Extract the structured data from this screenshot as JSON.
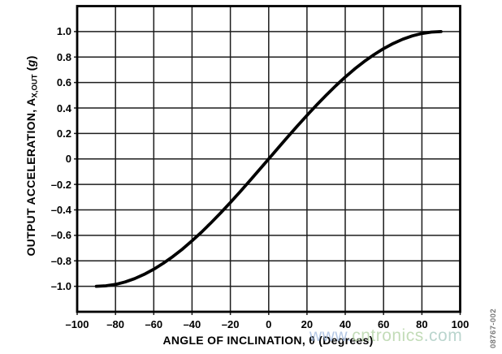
{
  "figure_code": "08767-002",
  "watermark": {
    "part1": "www.",
    "part2": "cntronics",
    "part3": ".com",
    "color1": "#a3bbdf",
    "color2": "#b5d4a7",
    "color3": "#a9cbc2"
  },
  "chart_data": {
    "type": "line",
    "title": "",
    "xlabel": "ANGLE OF INCLINATION, θ (Degrees)",
    "ylabel_parts": {
      "text": "OUTPUT ACCELERATION, A",
      "subscript": "X,OUT",
      "unit_open": " (",
      "unit": "g",
      "unit_close": ")"
    },
    "xlim": [
      -100,
      100
    ],
    "ylim": [
      -1.2,
      1.2
    ],
    "grid": true,
    "legend": "none",
    "x_ticks": [
      -100,
      -80,
      -60,
      -40,
      -20,
      0,
      20,
      40,
      60,
      80,
      100
    ],
    "x_tick_labels": [
      "–100",
      "–80",
      "–60",
      "–40",
      "–20",
      "0",
      "20",
      "40",
      "60",
      "80",
      "100"
    ],
    "y_ticks": [
      1.0,
      0.8,
      0.6,
      0.4,
      0.2,
      0,
      -0.2,
      -0.4,
      -0.6,
      -0.8,
      -1.0
    ],
    "y_tick_labels": [
      "1.0",
      "0.8",
      "0.6",
      "0.4",
      "0.2",
      "0",
      "–0.2",
      "–0.4",
      "–0.6",
      "–0.8",
      "–1.0"
    ],
    "series": [
      {
        "points": [
          [
            -90,
            -1.0
          ],
          [
            -85,
            -0.996
          ],
          [
            -80,
            -0.985
          ],
          [
            -75,
            -0.966
          ],
          [
            -70,
            -0.94
          ],
          [
            -65,
            -0.906
          ],
          [
            -60,
            -0.866
          ],
          [
            -55,
            -0.819
          ],
          [
            -50,
            -0.766
          ],
          [
            -45,
            -0.707
          ],
          [
            -40,
            -0.643
          ],
          [
            -35,
            -0.574
          ],
          [
            -30,
            -0.5
          ],
          [
            -25,
            -0.423
          ],
          [
            -20,
            -0.342
          ],
          [
            -15,
            -0.259
          ],
          [
            -10,
            -0.174
          ],
          [
            -5,
            -0.087
          ],
          [
            0,
            0
          ],
          [
            5,
            0.087
          ],
          [
            10,
            0.174
          ],
          [
            15,
            0.259
          ],
          [
            20,
            0.342
          ],
          [
            25,
            0.423
          ],
          [
            30,
            0.5
          ],
          [
            35,
            0.574
          ],
          [
            40,
            0.643
          ],
          [
            45,
            0.707
          ],
          [
            50,
            0.766
          ],
          [
            55,
            0.819
          ],
          [
            60,
            0.866
          ],
          [
            65,
            0.906
          ],
          [
            70,
            0.94
          ],
          [
            75,
            0.966
          ],
          [
            80,
            0.985
          ],
          [
            85,
            0.996
          ],
          [
            90,
            1.0
          ]
        ]
      }
    ],
    "colors": {
      "curve": "#000000",
      "grid": "#1d1d1d",
      "frame": "#000000",
      "text": "#000000"
    }
  }
}
